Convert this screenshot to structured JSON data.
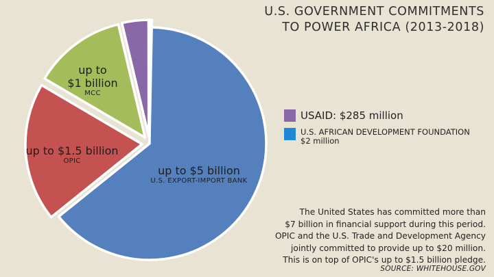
{
  "title_lines": [
    "U.S. GOVERNMENT COMMITMENTS",
    "TO POWER AFRICA (2013-2018)"
  ],
  "chart_data": {
    "type": "pie",
    "title": "U.S. GOVERNMENT COMMITMENTS TO POWER AFRICA (2013-2018)",
    "units": "USD",
    "slices": [
      {
        "name": "U.S. EXPORT-IMPORT BANK",
        "label": "up to $5 billion",
        "value": 5000000000,
        "color": "#5480bd"
      },
      {
        "name": "OPIC",
        "label": "up to $1.5 billion",
        "value": 1500000000,
        "color": "#c45250"
      },
      {
        "name": "MCC",
        "label": "up to $1 billion",
        "value": 1000000000,
        "color": "#a4bc5a"
      },
      {
        "name": "USAID",
        "label": "USAID: $285 million",
        "value": 285000000,
        "color": "#8a68a8"
      },
      {
        "name": "U.S. AFRICAN DEVELOPMENT FOUNDATION",
        "label": "$2 million",
        "value": 2000000,
        "color": "#1e88d6"
      }
    ]
  },
  "labels": {
    "exim_main": "up to $5 billion",
    "exim_sub": "U.S. EXPORT-IMPORT BANK",
    "opic_main": "up to $1.5 billion",
    "opic_sub": "OPIC",
    "mcc_main_1": "up to",
    "mcc_main_2": "$1 billion",
    "mcc_sub": "MCC"
  },
  "legend": {
    "usaid": "USAID: $285 million",
    "usadf_line1": "U.S. AFRICAN DEVELOPMENT FOUNDATION",
    "usadf_line2": "$2 million"
  },
  "footnote_lines": [
    "The United States has committed more than",
    "$7 billion in financial support during this period.",
    "OPIC and the U.S. Trade and Development Agency",
    "jointly committed to provide up to $20 million.",
    "This is on top of OPIC's up to $1.5 billion pledge."
  ],
  "source": "SOURCE: WHITEHOUSE.GOV"
}
